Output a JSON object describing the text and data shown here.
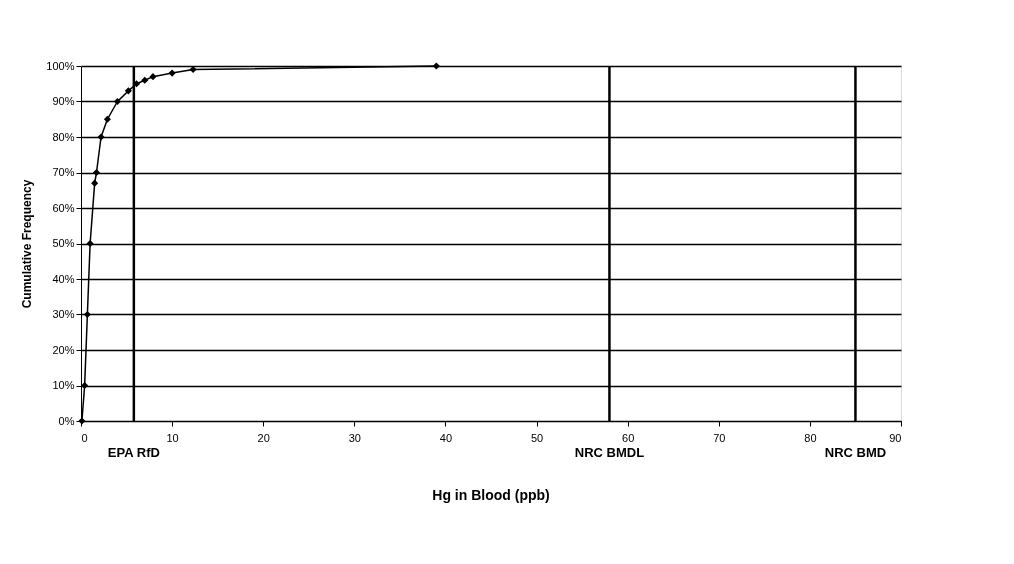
{
  "chart_data": {
    "type": "line",
    "xlabel": "Hg in Blood (ppb)",
    "ylabel": "Cumulative Frequency",
    "x": [
      0.1,
      0.4,
      0.7,
      1.0,
      1.5,
      1.7,
      2.2,
      2.9,
      4.0,
      5.2,
      6.1,
      7.0,
      7.9,
      10,
      12.3,
      39
    ],
    "series": [
      {
        "color": "#000000",
        "values": [
          0,
          10,
          30,
          50,
          67,
          70,
          80,
          85,
          90,
          93,
          95,
          96,
          97,
          98,
          99,
          100
        ]
      }
    ],
    "xlim": [
      0,
      90
    ],
    "xticks": [
      0,
      10,
      20,
      30,
      40,
      50,
      60,
      70,
      80,
      90
    ],
    "ylim": [
      0,
      100
    ],
    "yticks": [
      {
        "value": 0,
        "label": "0%"
      },
      {
        "value": 10,
        "label": "10%"
      },
      {
        "value": 20,
        "label": "20%"
      },
      {
        "value": 30,
        "label": "30%"
      },
      {
        "value": 40,
        "label": "40%"
      },
      {
        "value": 50,
        "label": "50%"
      },
      {
        "value": 60,
        "label": "60%"
      },
      {
        "value": 70,
        "label": "70%"
      },
      {
        "value": 80,
        "label": "80%"
      },
      {
        "value": 90,
        "label": "90%"
      },
      {
        "value": 100,
        "label": "100%"
      }
    ],
    "ref_lines": [
      {
        "axis": "x",
        "value": 5.8,
        "label": "EPA RfD",
        "color": "#000000"
      },
      {
        "axis": "x",
        "value": 58,
        "label": "NRC BMDL",
        "color": "#000000"
      },
      {
        "axis": "x",
        "value": 85,
        "label": "NRC BMD",
        "color": "#000000"
      }
    ],
    "grid": "y",
    "marker": "diamond",
    "line_style": "solid"
  }
}
